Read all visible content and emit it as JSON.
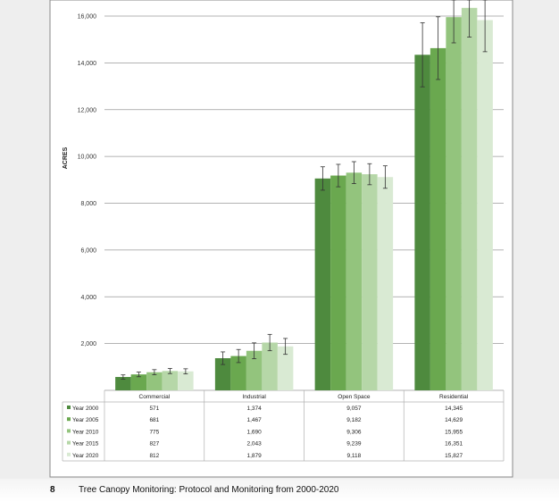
{
  "chart_data": {
    "type": "bar",
    "ylabel": "ACRES",
    "ylim": [
      0,
      16000
    ],
    "yticks": [
      2000,
      4000,
      6000,
      8000,
      10000,
      12000,
      14000,
      16000
    ],
    "ytick_labels": [
      "2,000",
      "4,000",
      "6,000",
      "8,000",
      "10,000",
      "12,000",
      "14,000",
      "16,000"
    ],
    "grid": true,
    "legend_placement": "table below chart",
    "categories": [
      "Commercial",
      "Industrial",
      "Open Space",
      "Residential"
    ],
    "series": [
      {
        "name": "Year 2000",
        "color": "#4e8a3e",
        "values": [
          571,
          1374,
          9057,
          14345
        ],
        "labels": [
          "571",
          "1,374",
          "9,057",
          "14,345"
        ],
        "error": [
          90,
          270,
          500,
          1370
        ]
      },
      {
        "name": "Year 2005",
        "color": "#6aa84f",
        "values": [
          681,
          1467,
          9182,
          14629
        ],
        "labels": [
          "681",
          "1,467",
          "9,182",
          "14,629"
        ],
        "error": [
          100,
          280,
          480,
          1340
        ]
      },
      {
        "name": "Year 2010",
        "color": "#93c47d",
        "values": [
          775,
          1690,
          9306,
          15955
        ],
        "labels": [
          "775",
          "1,690",
          "9,306",
          "15,955"
        ],
        "error": [
          110,
          340,
          470,
          1100
        ]
      },
      {
        "name": "Year 2015",
        "color": "#b6d7a8",
        "values": [
          827,
          2043,
          9239,
          16351
        ],
        "labels": [
          "827",
          "2,043",
          "9,239",
          "16,351"
        ],
        "error": [
          110,
          350,
          450,
          1250
        ]
      },
      {
        "name": "Year 2020",
        "color": "#d9ead3",
        "values": [
          812,
          1879,
          9118,
          15827
        ],
        "labels": [
          "812",
          "1,879",
          "9,118",
          "15,827"
        ],
        "error": [
          110,
          340,
          480,
          1350
        ]
      }
    ]
  },
  "footer": {
    "page_number": "8",
    "title": "Tree Canopy Monitoring: Protocol and Monitoring from 2000-2020"
  }
}
